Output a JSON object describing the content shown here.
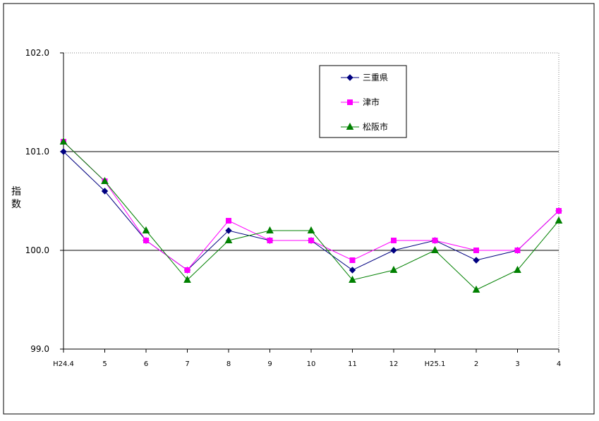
{
  "chart_data": {
    "type": "line",
    "title": "",
    "xlabel": "",
    "ylabel": "指数",
    "categories": [
      "H24.4",
      "5",
      "6",
      "7",
      "8",
      "9",
      "10",
      "11",
      "12",
      "H25.1",
      "2",
      "3",
      "4"
    ],
    "ylim": [
      99.0,
      102.0
    ],
    "yticks": [
      "99.0",
      "100.0",
      "101.0",
      "102.0"
    ],
    "grid": "horizontal lines at 100.0 and 101.0",
    "legend_position": "top-right",
    "series": [
      {
        "name": "三重県",
        "color": "#000080",
        "marker": "diamond",
        "values": [
          101.0,
          100.6,
          100.1,
          99.8,
          100.2,
          100.1,
          100.1,
          99.8,
          100.0,
          100.1,
          99.9,
          100.0,
          100.4
        ]
      },
      {
        "name": "津市",
        "color": "#ff00ff",
        "marker": "square",
        "values": [
          101.1,
          100.7,
          100.1,
          99.8,
          100.3,
          100.1,
          100.1,
          99.9,
          100.1,
          100.1,
          100.0,
          100.0,
          100.4
        ]
      },
      {
        "name": "松阪市",
        "color": "#008000",
        "marker": "triangle",
        "values": [
          101.1,
          100.7,
          100.2,
          99.7,
          100.1,
          100.2,
          100.2,
          99.7,
          99.8,
          100.0,
          99.6,
          99.8,
          100.3
        ]
      }
    ]
  }
}
